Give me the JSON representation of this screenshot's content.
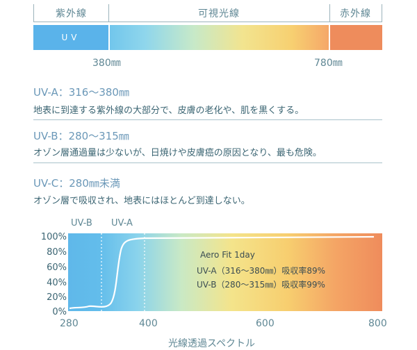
{
  "bands": {
    "uv": "紫外線",
    "visible": "可視光線",
    "ir": "赤外線",
    "uv_short": "UV",
    "boundary_low": "380㎜",
    "boundary_high": "780㎜"
  },
  "uv_types": [
    {
      "title": "UV-A：316～380㎜",
      "desc": "地表に到達する紫外線の大部分で、皮膚の老化や、肌を黒くする。"
    },
    {
      "title": "UV-B：280～315㎜",
      "desc": "オゾン層通過量は少ないが、日焼けや皮膚癌の原因となり、最も危険。"
    },
    {
      "title": "UV-C：280㎜未満",
      "desc": "オゾン層で吸収され、地表にはほとんど到達しない。"
    }
  ],
  "graph": {
    "region_b": "UV-B",
    "region_a": "UV-A",
    "legend_title": "Aero Fit 1day",
    "legend_a": "UV-A（316～380㎜）吸収率89%",
    "legend_b": "UV-B（280～315㎜）吸収率99%",
    "y_ticks": [
      "100%",
      "80%",
      "60%",
      "40%",
      "20%",
      "0%"
    ],
    "x_ticks": [
      "280",
      "400",
      "600",
      "800"
    ],
    "x_title": "光線透過スペクトル"
  }
}
